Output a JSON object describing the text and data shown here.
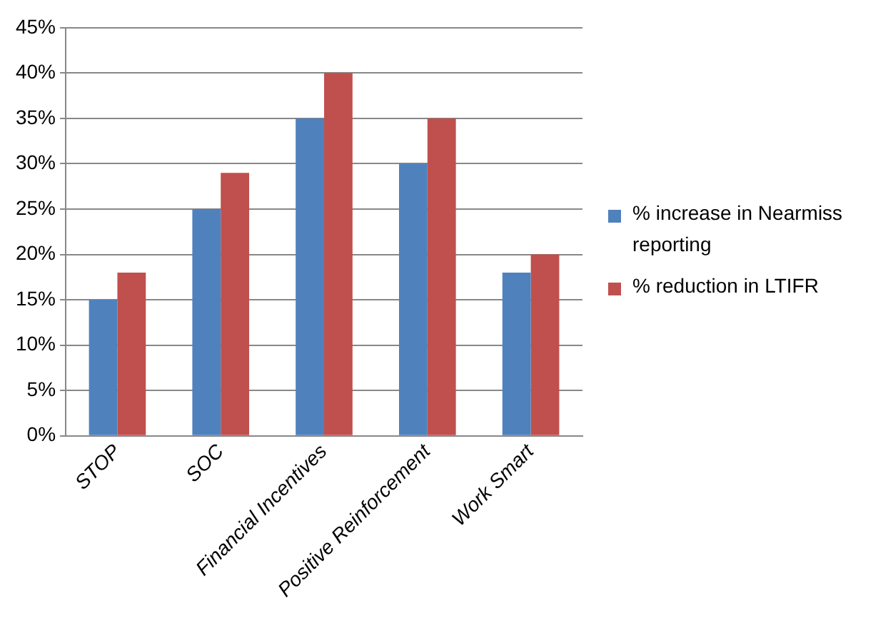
{
  "chart_data": {
    "type": "bar",
    "categories": [
      "STOP",
      "SOC",
      "Financial Incentives",
      "Positive Reinforcement",
      "Work Smart"
    ],
    "series": [
      {
        "name": "% increase in Nearmiss reporting",
        "color": "#4f81bd",
        "values": [
          15,
          25,
          35,
          30,
          18
        ]
      },
      {
        "name": "% reduction in LTIFR",
        "color": "#c0504d",
        "values": [
          18,
          29,
          40,
          35,
          20
        ]
      }
    ],
    "ylim": [
      0,
      45
    ],
    "yticks": [
      {
        "value": 0,
        "label": "0%"
      },
      {
        "value": 5,
        "label": "5%"
      },
      {
        "value": 10,
        "label": "10%"
      },
      {
        "value": 15,
        "label": "15%"
      },
      {
        "value": 20,
        "label": "20%"
      },
      {
        "value": 25,
        "label": "25%"
      },
      {
        "value": 30,
        "label": "30%"
      },
      {
        "value": 35,
        "label": "35%"
      },
      {
        "value": 40,
        "label": "40%"
      },
      {
        "value": 45,
        "label": "45%"
      }
    ],
    "grid": "y",
    "legend": "right"
  }
}
